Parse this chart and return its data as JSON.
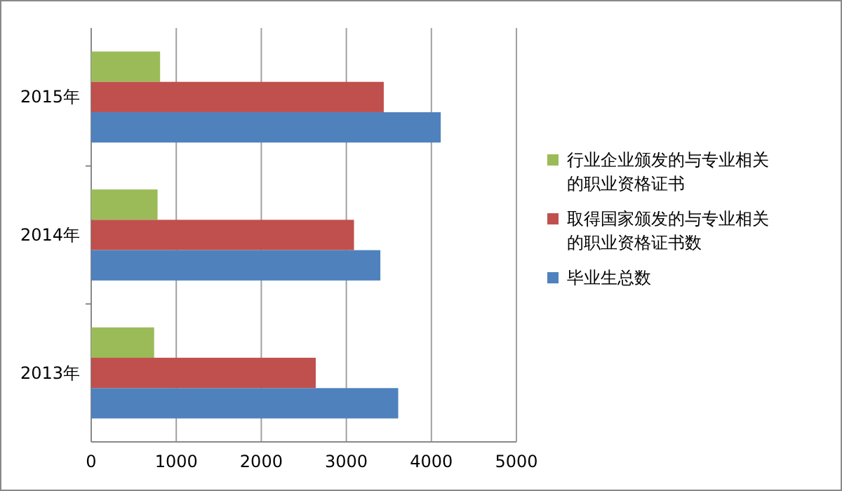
{
  "chart_data": {
    "type": "bar",
    "orientation": "horizontal",
    "categories": [
      "2015年",
      "2014年",
      "2013年"
    ],
    "series": [
      {
        "name": "行业企业颁发的与专业相关的职业资格证书",
        "color": "#9bbb59",
        "values": [
          810,
          780,
          740
        ]
      },
      {
        "name": "取得国家颁发的与专业相关的职业资格证书数",
        "color": "#c0504d",
        "values": [
          3440,
          3090,
          2640
        ]
      },
      {
        "name": "毕业生总数",
        "color": "#4f81bd",
        "values": [
          4110,
          3400,
          3610
        ]
      }
    ],
    "xlim": [
      0,
      5000
    ],
    "xticks": [
      0,
      1000,
      2000,
      3000,
      4000,
      5000
    ],
    "grid": "x",
    "legend": "right"
  }
}
